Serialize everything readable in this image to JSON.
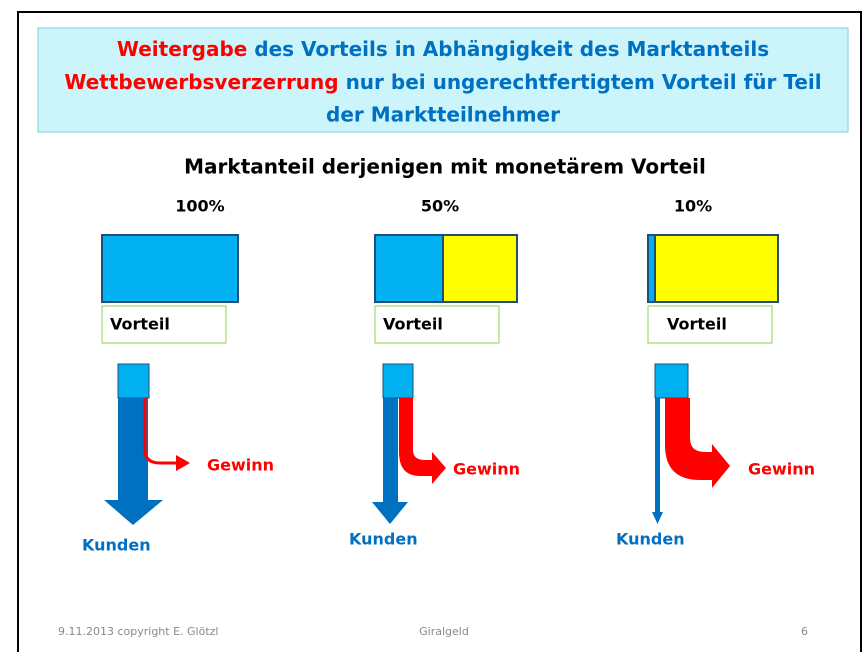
{
  "header": {
    "line1": {
      "red": "Weitergabe",
      "blue": " des Vorteils in Abhängigkeit des Marktanteils"
    },
    "line2": {
      "red": "Wettbewerbsverzerrung",
      "blue": " nur bei ungerechtfertigtem Vorteil für Teil"
    },
    "line3": "der Marktteilnehmer"
  },
  "subtitle": "Marktanteil derjenigen mit monetärem Vorteil",
  "panels": [
    {
      "share": "100%",
      "advantage": "Vorteil",
      "profit": "Gewinn",
      "customers": "Kunden"
    },
    {
      "share": "50%",
      "advantage": "Vorteil",
      "profit": "Gewinn",
      "customers": "Kunden"
    },
    {
      "share": "10%",
      "advantage": "Vorteil",
      "profit": "Gewinn",
      "customers": "Kunden"
    }
  ],
  "footer": {
    "left": "9.11.2013 copyright E. Glötzl",
    "center": "Giralgeld",
    "right": "6"
  }
}
